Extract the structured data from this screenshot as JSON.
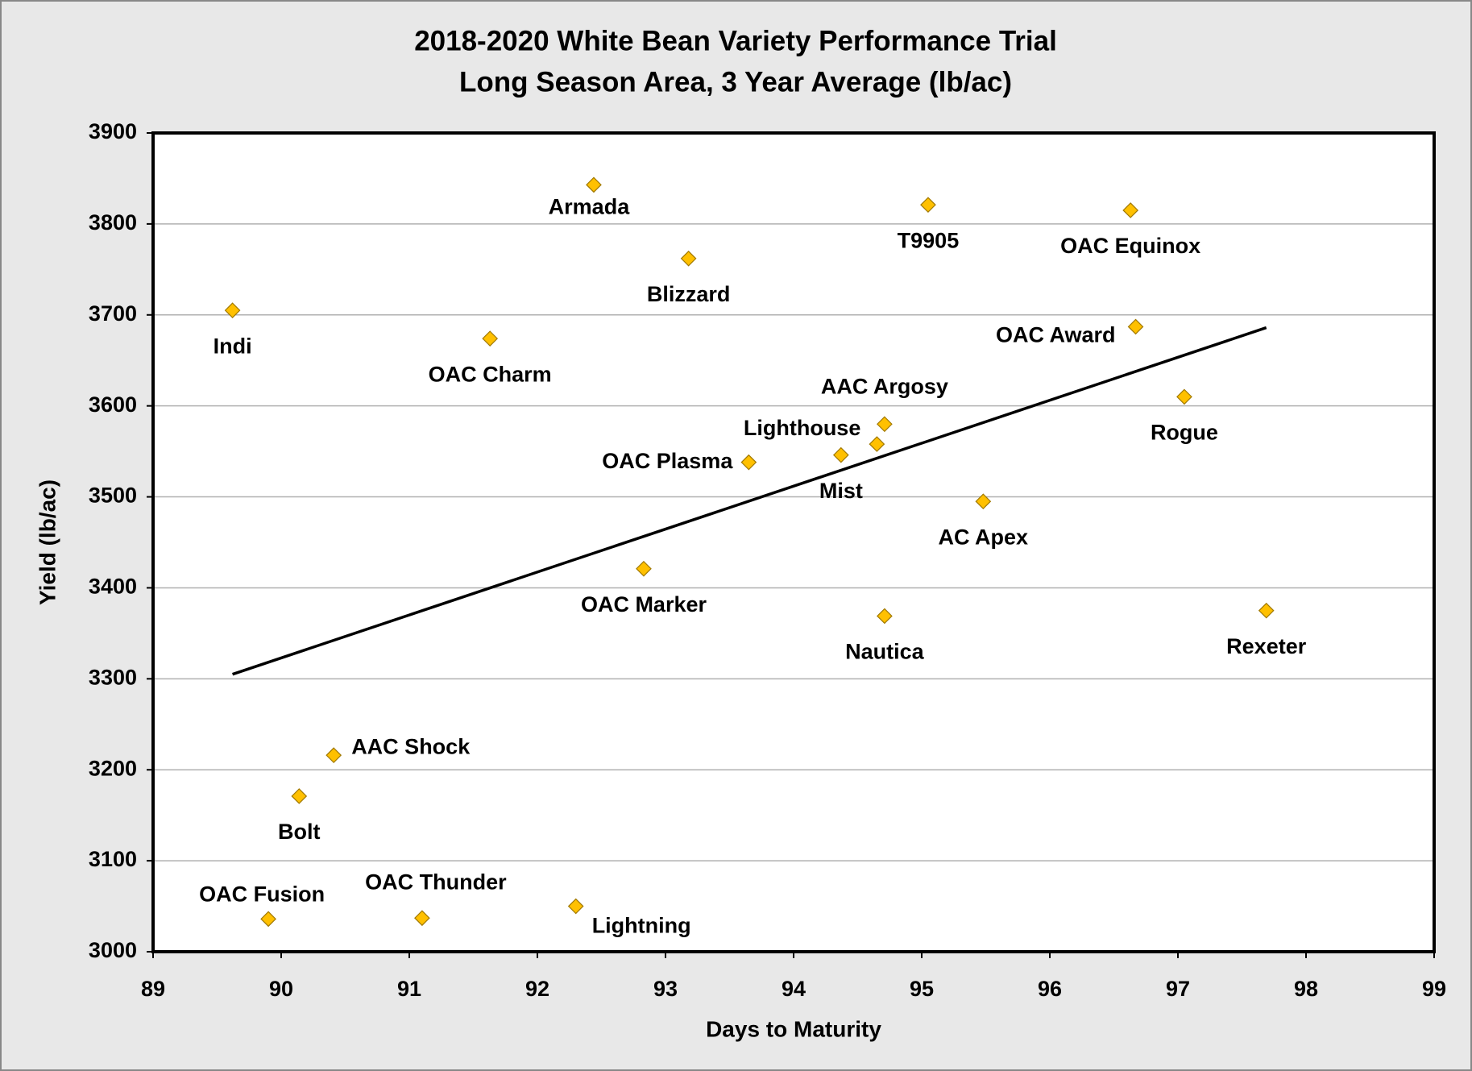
{
  "chart_data": {
    "type": "scatter",
    "title": "2018-2020 White Bean Variety Performance Trial",
    "subtitle": "Long Season Area, 3 Year Average (lb/ac)",
    "x_label": "Days to Maturity",
    "y_label": "Yield (lb/ac)",
    "labels": [
      "Armada",
      "T9905",
      "OAC Equinox",
      "Blizzard",
      "Indi",
      "OAC Charm",
      "OAC Award",
      "Rogue",
      "AAC Argosy",
      "Lighthouse",
      "Mist",
      "OAC Plasma",
      "AC Apex",
      "OAC Marker",
      "Nautica",
      "Rexeter",
      "AAC Shock",
      "Bolt",
      "OAC Fusion",
      "OAC Thunder",
      "Lightning"
    ],
    "x": [
      92.44,
      95.05,
      96.63,
      93.18,
      89.62,
      91.63,
      96.67,
      97.05,
      94.71,
      94.65,
      94.37,
      93.65,
      95.48,
      92.83,
      94.71,
      97.69,
      90.41,
      90.14,
      89.9,
      91.1,
      92.3
    ],
    "values": [
      3843,
      3821,
      3815,
      3762,
      3705,
      3674,
      3687,
      3610,
      3580,
      3558,
      3546,
      3538,
      3495,
      3421,
      3369,
      3375,
      3216,
      3171,
      3036,
      3037,
      3050
    ],
    "color": "#ffc000",
    "trendline": {
      "x": [
        89.62,
        97.69
      ],
      "values": [
        3305,
        3686
      ]
    },
    "xlim": [
      89,
      99
    ],
    "xticks": [
      89,
      90,
      91,
      92,
      93,
      94,
      95,
      96,
      97,
      98,
      99
    ],
    "ylim": [
      3000,
      3900
    ],
    "yticks": [
      3000,
      3100,
      3200,
      3300,
      3400,
      3500,
      3600,
      3700,
      3800,
      3900
    ],
    "grid": true
  }
}
